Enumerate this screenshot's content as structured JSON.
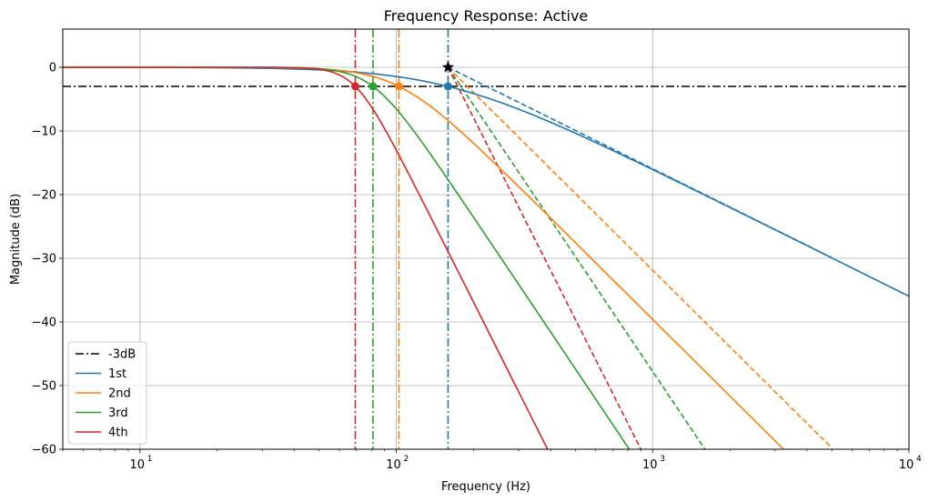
{
  "chart_data": {
    "type": "line",
    "title": "Frequency Response: Active",
    "xlabel": "Frequency (Hz)",
    "ylabel": "Magnitude (dB)",
    "xscale": "log",
    "xlim": [
      5,
      10000
    ],
    "ylim": [
      -60,
      6
    ],
    "x_ticks": [
      {
        "base": "10",
        "exp": "1",
        "value": 10
      },
      {
        "base": "10",
        "exp": "2",
        "value": 100
      },
      {
        "base": "10",
        "exp": "3",
        "value": 1000
      },
      {
        "base": "10",
        "exp": "4",
        "value": 10000
      }
    ],
    "y_ticks": [
      {
        "label": "0",
        "value": 0
      },
      {
        "label": "−10",
        "value": -10
      },
      {
        "label": "−20",
        "value": -20
      },
      {
        "label": "−30",
        "value": -30
      },
      {
        "label": "−40",
        "value": -40
      },
      {
        "label": "−50",
        "value": -50
      },
      {
        "label": "−60",
        "value": -60
      }
    ],
    "grid": true,
    "legend_position": "lower-left",
    "reference_line": {
      "name": "-3dB",
      "value": -3,
      "color": "#000000"
    },
    "series": [
      {
        "name": "1st",
        "order": 1,
        "cutoff_hz": 159.2,
        "color": "#1f77b4"
      },
      {
        "name": "2nd",
        "order": 2,
        "cutoff_hz": 102.4,
        "color": "#ff7f0e"
      },
      {
        "name": "3rd",
        "order": 3,
        "cutoff_hz": 81.1,
        "color": "#2ca02c"
      },
      {
        "name": "4th",
        "order": 4,
        "cutoff_hz": 69.2,
        "color": "#d62728"
      }
    ],
    "design_frequency_hz": 159.2,
    "asymptotes": [
      {
        "series": "1st",
        "from": [
          159.2,
          0
        ],
        "to": [
          5000,
          -29.9
        ]
      },
      {
        "series": "2nd",
        "from": [
          159.2,
          0
        ],
        "to": [
          5000,
          -59.8
        ]
      },
      {
        "series": "3rd",
        "from": [
          159.2,
          0
        ],
        "to": [
          1600,
          -60
        ]
      },
      {
        "series": "4th",
        "from": [
          159.2,
          0
        ],
        "to": [
          900,
          -60
        ]
      }
    ]
  }
}
